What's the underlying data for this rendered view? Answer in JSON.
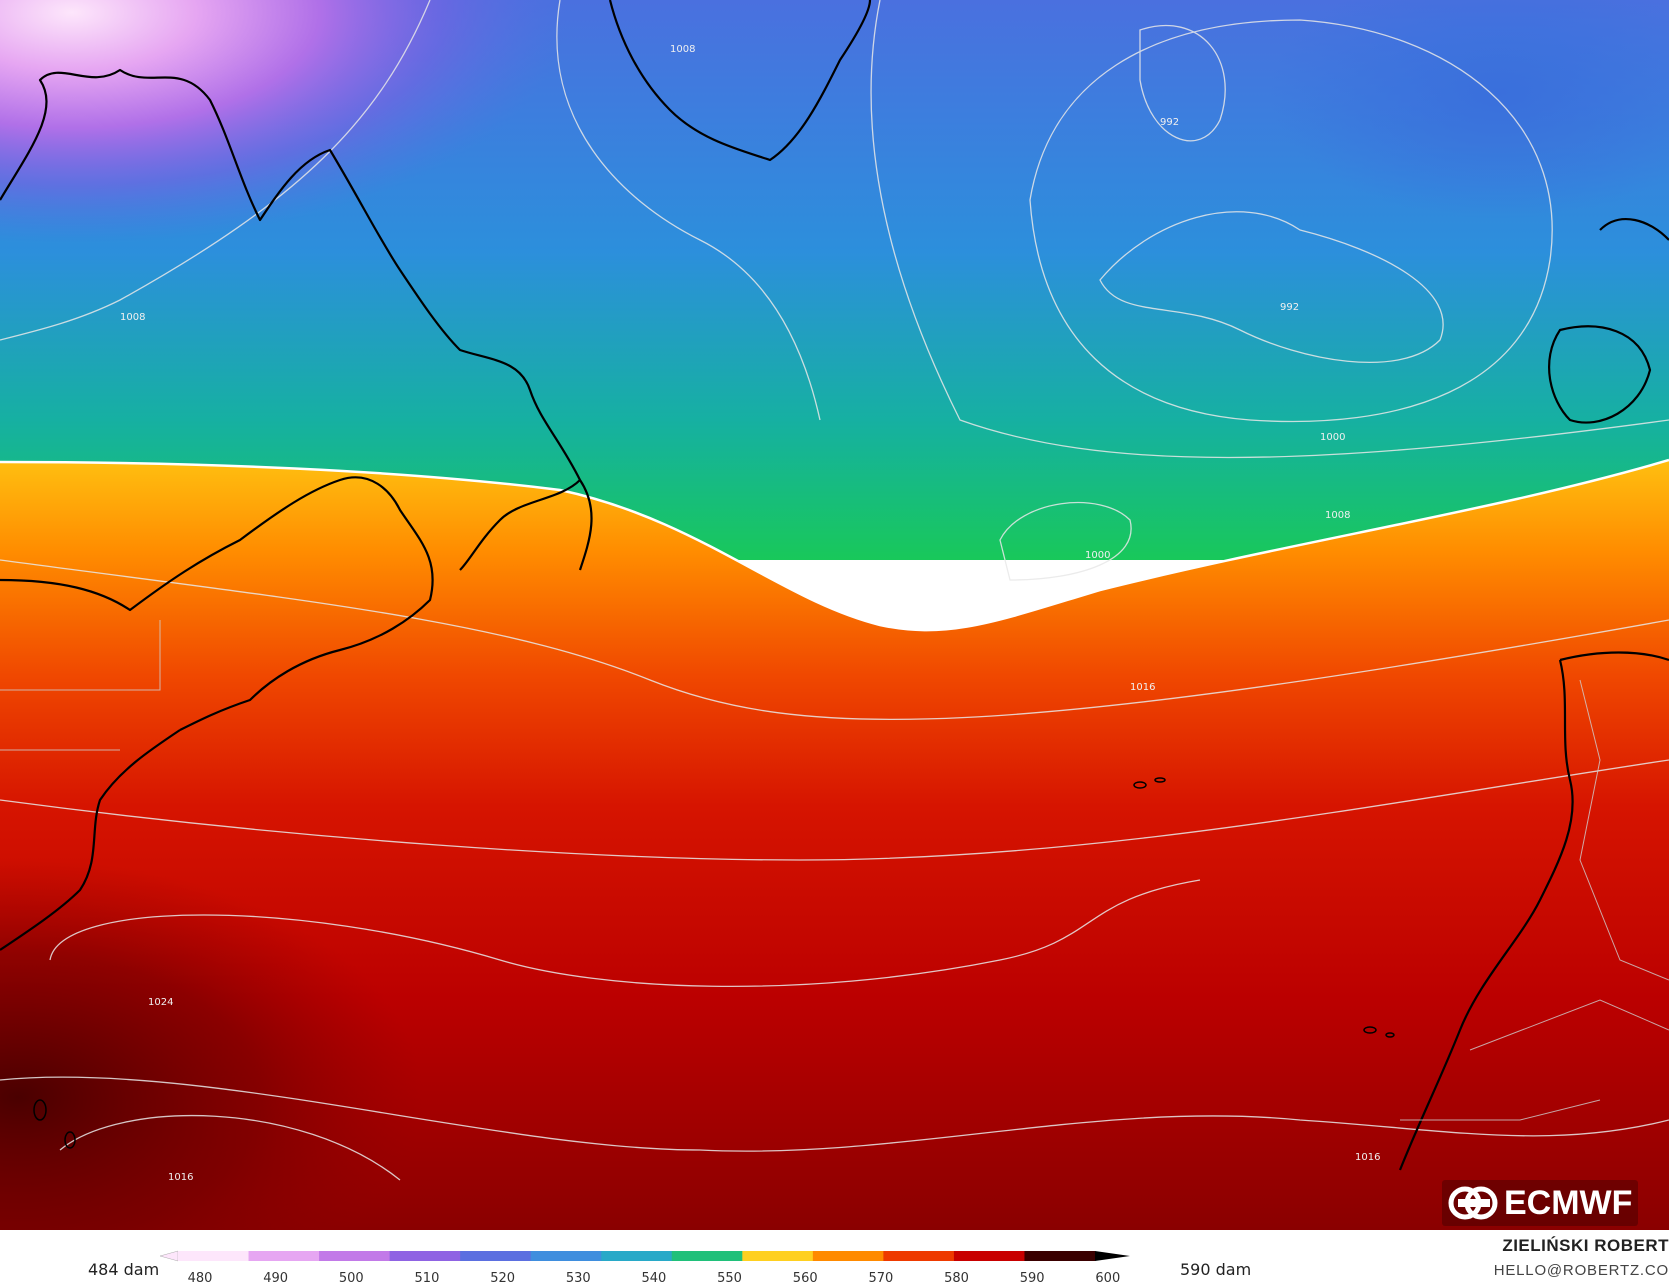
{
  "colorbar": {
    "min_label": "484 dam",
    "max_label": "590 dam",
    "ticks": [
      "480",
      "490",
      "500",
      "510",
      "520",
      "530",
      "540",
      "550",
      "560",
      "570",
      "580",
      "590",
      "600"
    ],
    "colors": [
      "#fde6fb",
      "#e6a6f2",
      "#c27ae8",
      "#8f63e3",
      "#5b6fe0",
      "#3f8ede",
      "#28a9c8",
      "#20c07a",
      "#ffd020",
      "#ff8a00",
      "#ee3a00",
      "#c80000",
      "#3a0000"
    ]
  },
  "isobar_labels": [
    "1008",
    "992",
    "992",
    "1008",
    "1000",
    "1008",
    "1000",
    "1016",
    "1024",
    "1016",
    "1016"
  ],
  "logo": {
    "icon": "ecmwf-logo-icon",
    "text": "ECMWF"
  },
  "credits": {
    "name": "ZIELIŃSKI ROBERT",
    "email": "HELLO@ROBERTZ.CO"
  }
}
